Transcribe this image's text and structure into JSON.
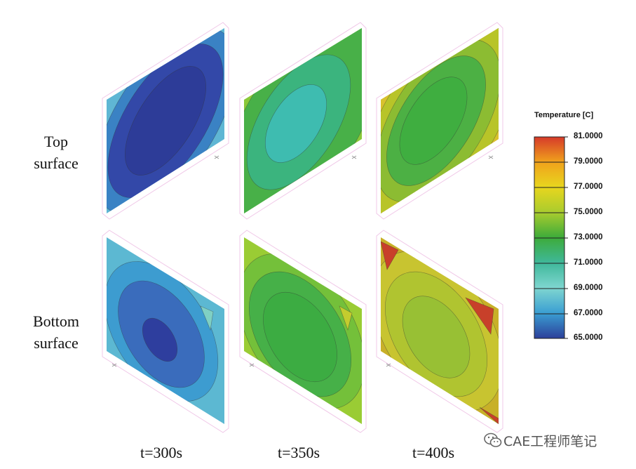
{
  "row_labels": {
    "top": [
      "Top",
      "surface"
    ],
    "bottom": [
      "Bottom",
      "surface"
    ]
  },
  "time_labels": [
    "t=300s",
    "t=350s",
    "t=400s"
  ],
  "legend": {
    "title": "Temperature [C]",
    "ticks": [
      "81.0000",
      "79.0000",
      "77.0000",
      "75.0000",
      "73.0000",
      "71.0000",
      "69.0000",
      "67.0000",
      "65.0000"
    ],
    "colors": [
      "#d63a2a",
      "#f0a21c",
      "#e8d61e",
      "#a9cc2e",
      "#3dab3a",
      "#3fb89a",
      "#7fd6d0",
      "#3a9ed2",
      "#2c3f9a"
    ]
  },
  "watermark": {
    "text": "CAE工程师笔记",
    "icon": "wechat-icon"
  },
  "colors": {
    "t300_top": [
      "#5fb6d4",
      "#3a82c4",
      "#3348a8",
      "#2d3c98"
    ],
    "t350_top": [
      "#8ac838",
      "#48b048",
      "#3bb47e",
      "#3ebcb0"
    ],
    "t400_top": [
      "#b8c428",
      "#8cbc32",
      "#4cb044",
      "#3fae40"
    ],
    "t300_bottom": [
      "#5cb8d2",
      "#3d9cd0",
      "#3a6cbc",
      "#2e3e9e"
    ],
    "t350_bottom": [
      "#9acc34",
      "#74c03a",
      "#46b048",
      "#3cac42"
    ],
    "t400_bottom": [
      "#c8b028",
      "#c8c430",
      "#b0c430",
      "#98c034"
    ]
  }
}
